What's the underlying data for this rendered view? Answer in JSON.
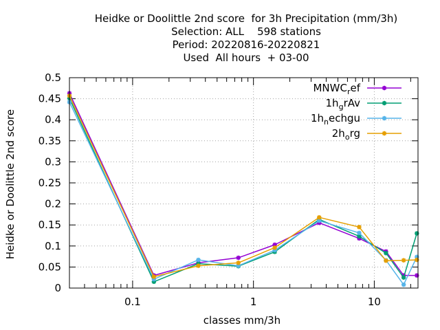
{
  "title_lines": [
    "Heidke or Doolittle 2nd score  for 3h Precipitation (mm/3h)",
    "Selection: ALL    598 stations",
    "Period: 20220816-20220821",
    "Used  All hours  + 03-00"
  ],
  "chart_data": {
    "type": "line",
    "xlabel": "classes mm/3h",
    "ylabel": "Heidke or Doolittle 2nd score",
    "xscale": "log",
    "xlim": [
      0.03,
      23
    ],
    "ylim": [
      0,
      0.5
    ],
    "yticks": [
      0,
      0.05,
      0.1,
      0.15,
      0.2,
      0.25,
      0.3,
      0.35,
      0.4,
      0.45,
      0.5
    ],
    "ytick_labels": [
      "0",
      "0.05",
      "0.1",
      "0.15",
      "0.2",
      "0.25",
      "0.3",
      "0.35",
      "0.4",
      "0.45",
      "0.5"
    ],
    "xticks_major": [
      0.1,
      1,
      10
    ],
    "xtick_labels": [
      "0.1",
      "1",
      "10"
    ],
    "xticks_minor": [
      0.04,
      0.05,
      0.06,
      0.07,
      0.08,
      0.09,
      0.2,
      0.3,
      0.4,
      0.5,
      0.6,
      0.7,
      0.8,
      0.9,
      2,
      3,
      4,
      5,
      6,
      7,
      8,
      9,
      20
    ],
    "grid": true,
    "legend_position": "top-right",
    "x": [
      0.03,
      0.15,
      0.35,
      0.75,
      1.5,
      3.5,
      7.5,
      12.5,
      17.5,
      22.5
    ],
    "series": [
      {
        "name": "MNWC",
        "sub": "r",
        "tail": "ef",
        "color": "#9400d3",
        "values": [
          0.463,
          0.03,
          0.06,
          0.072,
          0.103,
          0.155,
          0.118,
          0.087,
          0.03,
          0.03
        ]
      },
      {
        "name": "1h",
        "sub": "g",
        "tail": "rAv",
        "color": "#009e73",
        "values": [
          0.451,
          0.015,
          0.058,
          0.052,
          0.086,
          0.163,
          0.123,
          0.083,
          0.025,
          0.13
        ]
      },
      {
        "name": "1h",
        "sub": "n",
        "tail": "echgu",
        "color": "#56b4e9",
        "values": [
          0.442,
          0.021,
          0.067,
          0.053,
          0.09,
          0.16,
          0.131,
          0.066,
          0.008,
          0.074
        ]
      },
      {
        "name": "2h",
        "sub": "o",
        "tail": "rg",
        "color": "#e69f00",
        "values": [
          0.457,
          0.027,
          0.053,
          0.06,
          0.096,
          0.168,
          0.145,
          0.065,
          0.066,
          0.067
        ]
      }
    ]
  }
}
